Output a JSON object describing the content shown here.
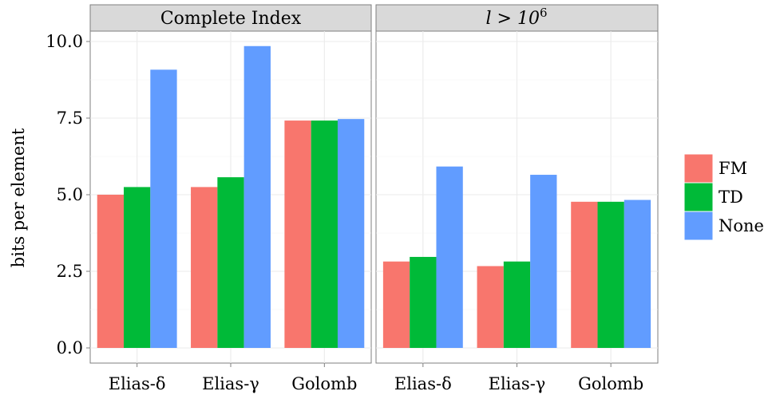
{
  "chart_data": {
    "type": "bar",
    "ylabel": "bits per element",
    "ylim": [
      0,
      10.5
    ],
    "yticks": [
      "0.0",
      "2.5",
      "5.0",
      "7.5",
      "10.0"
    ],
    "ytick_values": [
      0,
      2.5,
      5,
      7.5,
      10
    ],
    "categories": [
      "Elias-δ",
      "Elias-γ",
      "Golomb"
    ],
    "legend_position": "right",
    "grid": true,
    "colors": {
      "FM": "#F8766D",
      "TD": "#00BA38",
      "None": "#619CFF",
      "panel": "#ffffff",
      "grid": "#ebebeb",
      "strip": "#d9d9d9"
    },
    "legend": [
      "FM",
      "TD",
      "None"
    ],
    "facets": [
      {
        "title": "Complete Index",
        "series": [
          {
            "name": "FM",
            "values": [
              5.0,
              5.25,
              7.42
            ]
          },
          {
            "name": "TD",
            "values": [
              5.25,
              5.57,
              7.42
            ]
          },
          {
            "name": "None",
            "values": [
              9.08,
              9.85,
              7.47
            ]
          }
        ]
      },
      {
        "title": "l > 10^6",
        "title_parts": {
          "prefix": "l > 10",
          "sup": "6"
        },
        "series": [
          {
            "name": "FM",
            "values": [
              2.82,
              2.67,
              4.77
            ]
          },
          {
            "name": "TD",
            "values": [
              2.97,
              2.82,
              4.77
            ]
          },
          {
            "name": "None",
            "values": [
              5.92,
              5.65,
              4.83
            ]
          }
        ]
      }
    ]
  }
}
